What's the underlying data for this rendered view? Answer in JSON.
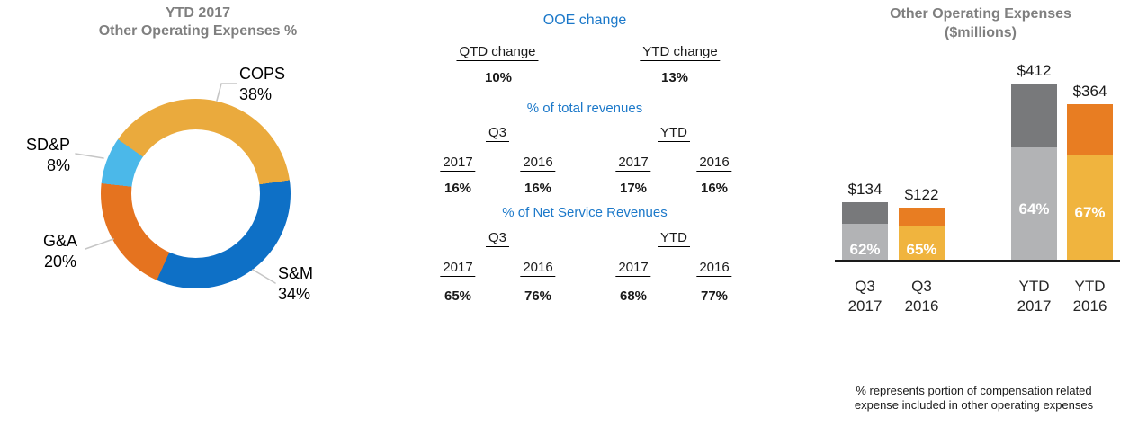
{
  "colors": {
    "title_gray": "#7F7F7F",
    "heading_blue": "#1B78C9",
    "axis_black": "#1A1A1A",
    "leader_gray": "#C6C6C6",
    "pct_label_white": "#FFFFFF"
  },
  "donut": {
    "title_line1": "YTD 2017",
    "title_line2": "Other Operating Expenses %",
    "slices": [
      {
        "label": "COPS",
        "pct_label": "38%",
        "value": 38,
        "color": "#EAAA3D"
      },
      {
        "label": "S&M",
        "pct_label": "34%",
        "value": 34,
        "color": "#0E70C6"
      },
      {
        "label": "G&A",
        "pct_label": "20%",
        "value": 20,
        "color": "#E5731F"
      },
      {
        "label": "SD&P",
        "pct_label": "8%",
        "value": 8,
        "color": "#4BB8E9"
      }
    ]
  },
  "ooe": {
    "title": "OOE change",
    "change_headers": [
      "QTD change",
      "YTD change"
    ],
    "change_values": [
      "10%",
      "13%"
    ],
    "sections": [
      {
        "heading": "% of total revenues",
        "groups": [
          "Q3",
          "YTD"
        ],
        "years": [
          "2017",
          "2016",
          "2017",
          "2016"
        ],
        "values": [
          "16%",
          "16%",
          "17%",
          "16%"
        ]
      },
      {
        "heading": "% of Net Service Revenues",
        "groups": [
          "Q3",
          "YTD"
        ],
        "years": [
          "2017",
          "2016",
          "2017",
          "2016"
        ],
        "values": [
          "65%",
          "76%",
          "68%",
          "77%"
        ]
      }
    ]
  },
  "bar_chart": {
    "title_line1": "Other Operating Expenses",
    "title_line2": "($millions)",
    "bars": [
      {
        "value_label": "$134",
        "pct_label": "62%",
        "cat_line1": "Q3",
        "cat_line2": "2017",
        "bottom_color": "#B2B3B5",
        "top_color": "#78797B"
      },
      {
        "value_label": "$122",
        "pct_label": "65%",
        "cat_line1": "Q3",
        "cat_line2": "2016",
        "bottom_color": "#F0B43E",
        "top_color": "#E87D22"
      },
      {
        "value_label": "$412",
        "pct_label": "64%",
        "cat_line1": "YTD",
        "cat_line2": "2017",
        "bottom_color": "#B2B3B5",
        "top_color": "#78797B"
      },
      {
        "value_label": "$364",
        "pct_label": "67%",
        "cat_line1": "YTD",
        "cat_line2": "2016",
        "bottom_color": "#F0B43E",
        "top_color": "#E87D22"
      }
    ],
    "footnote_line1": "% represents portion of compensation related",
    "footnote_line2": "expense included in other operating expenses"
  },
  "chart_data": [
    {
      "type": "pie",
      "subtype": "donut",
      "title": "YTD 2017 Other Operating Expenses %",
      "labels": [
        "COPS",
        "S&M",
        "G&A",
        "SD&P"
      ],
      "values": [
        38,
        34,
        20,
        8
      ],
      "unit": "%",
      "colors": [
        "#EAAA3D",
        "#0E70C6",
        "#E5731F",
        "#4BB8E9"
      ],
      "start_angle_deg": -55,
      "direction": "clockwise",
      "legend_position": "callout-labels"
    },
    {
      "type": "bar",
      "subtype": "stacked",
      "title": "Other Operating Expenses ($millions)",
      "categories": [
        "Q3 2017",
        "Q3 2016",
        "YTD 2017",
        "YTD 2016"
      ],
      "totals": [
        134,
        122,
        412,
        364
      ],
      "compensation_pct": [
        62,
        65,
        64,
        67
      ],
      "data_labels": [
        "$134",
        "$122",
        "$412",
        "$364"
      ],
      "segment_labels": [
        "62%",
        "65%",
        "64%",
        "67%"
      ],
      "ylim": [
        0,
        440
      ],
      "grid": false,
      "legend_position": "none",
      "annotation": "% represents portion of compensation related expense included in other operating expenses"
    },
    {
      "type": "table",
      "title": "OOE change",
      "change_rows": [
        {
          "label": "QTD change",
          "value": "10%"
        },
        {
          "label": "YTD change",
          "value": "13%"
        }
      ],
      "sections": [
        {
          "heading": "% of total revenues",
          "columns": [
            "Q3 2017",
            "Q3 2016",
            "YTD 2017",
            "YTD 2016"
          ],
          "values": [
            "16%",
            "16%",
            "17%",
            "16%"
          ]
        },
        {
          "heading": "% of Net Service Revenues",
          "columns": [
            "Q3 2017",
            "Q3 2016",
            "YTD 2017",
            "YTD 2016"
          ],
          "values": [
            "65%",
            "76%",
            "68%",
            "77%"
          ]
        }
      ]
    }
  ]
}
